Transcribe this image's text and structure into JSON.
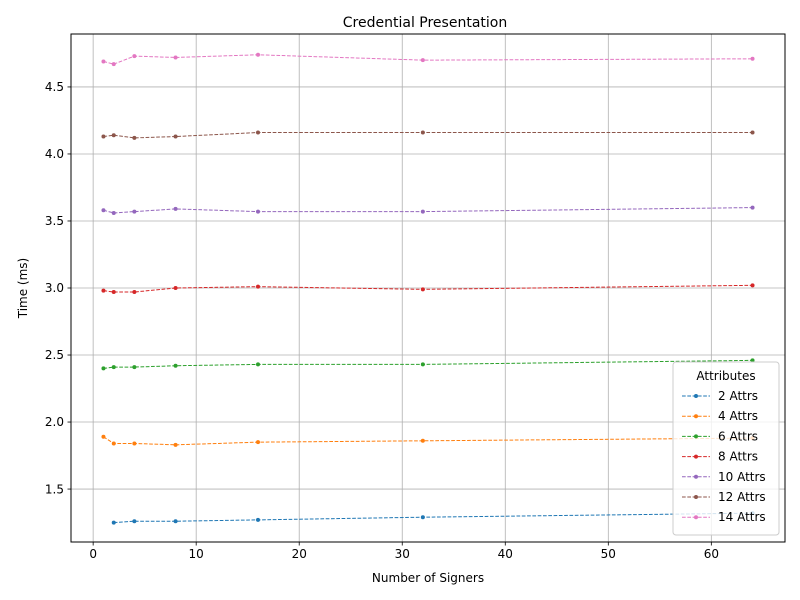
{
  "chart_data": {
    "type": "line",
    "title": "Credential Presentation",
    "xlabel": "Number of Signers",
    "ylabel": "Time (ms)",
    "xlim": [
      -2.15,
      67.15
    ],
    "ylim": [
      1.105,
      4.895
    ],
    "xticks": [
      0,
      10,
      20,
      30,
      40,
      50,
      60
    ],
    "yticks": [
      1.5,
      2.0,
      2.5,
      3.0,
      3.5,
      4.0,
      4.5
    ],
    "xtick_labels": [
      "0",
      "10",
      "20",
      "30",
      "40",
      "50",
      "60"
    ],
    "ytick_labels": [
      "1.5",
      "2.0",
      "2.5",
      "3.0",
      "3.5",
      "4.0",
      "4.5"
    ],
    "grid": true,
    "legend": {
      "title": "Attributes",
      "placement": "lower-right"
    },
    "series": [
      {
        "name": "2 Attrs",
        "color": "#1f77b4",
        "x": [
          2,
          4,
          8,
          16,
          32,
          64
        ],
        "y": [
          1.25,
          1.26,
          1.26,
          1.27,
          1.29,
          1.32
        ]
      },
      {
        "name": "4 Attrs",
        "color": "#ff7f0e",
        "x": [
          1,
          2,
          4,
          8,
          16,
          32,
          64
        ],
        "y": [
          1.89,
          1.84,
          1.84,
          1.83,
          1.85,
          1.86,
          1.88
        ]
      },
      {
        "name": "6 Attrs",
        "color": "#2ca02c",
        "x": [
          1,
          2,
          4,
          8,
          16,
          32,
          64
        ],
        "y": [
          2.4,
          2.41,
          2.41,
          2.42,
          2.43,
          2.43,
          2.46
        ]
      },
      {
        "name": "8 Attrs",
        "color": "#d62728",
        "x": [
          1,
          2,
          4,
          8,
          16,
          32,
          64
        ],
        "y": [
          2.98,
          2.97,
          2.97,
          3.0,
          3.01,
          2.99,
          3.02
        ]
      },
      {
        "name": "10 Attrs",
        "color": "#9467bd",
        "x": [
          1,
          2,
          4,
          8,
          16,
          32,
          64
        ],
        "y": [
          3.58,
          3.56,
          3.57,
          3.59,
          3.57,
          3.57,
          3.6
        ]
      },
      {
        "name": "12 Attrs",
        "color": "#8c564b",
        "x": [
          1,
          2,
          4,
          8,
          16,
          32,
          64
        ],
        "y": [
          4.13,
          4.14,
          4.12,
          4.13,
          4.16,
          4.16,
          4.16
        ]
      },
      {
        "name": "14 Attrs",
        "color": "#e377c2",
        "x": [
          1,
          2,
          4,
          8,
          16,
          32,
          64
        ],
        "y": [
          4.69,
          4.67,
          4.73,
          4.72,
          4.74,
          4.7,
          4.71
        ]
      }
    ]
  }
}
